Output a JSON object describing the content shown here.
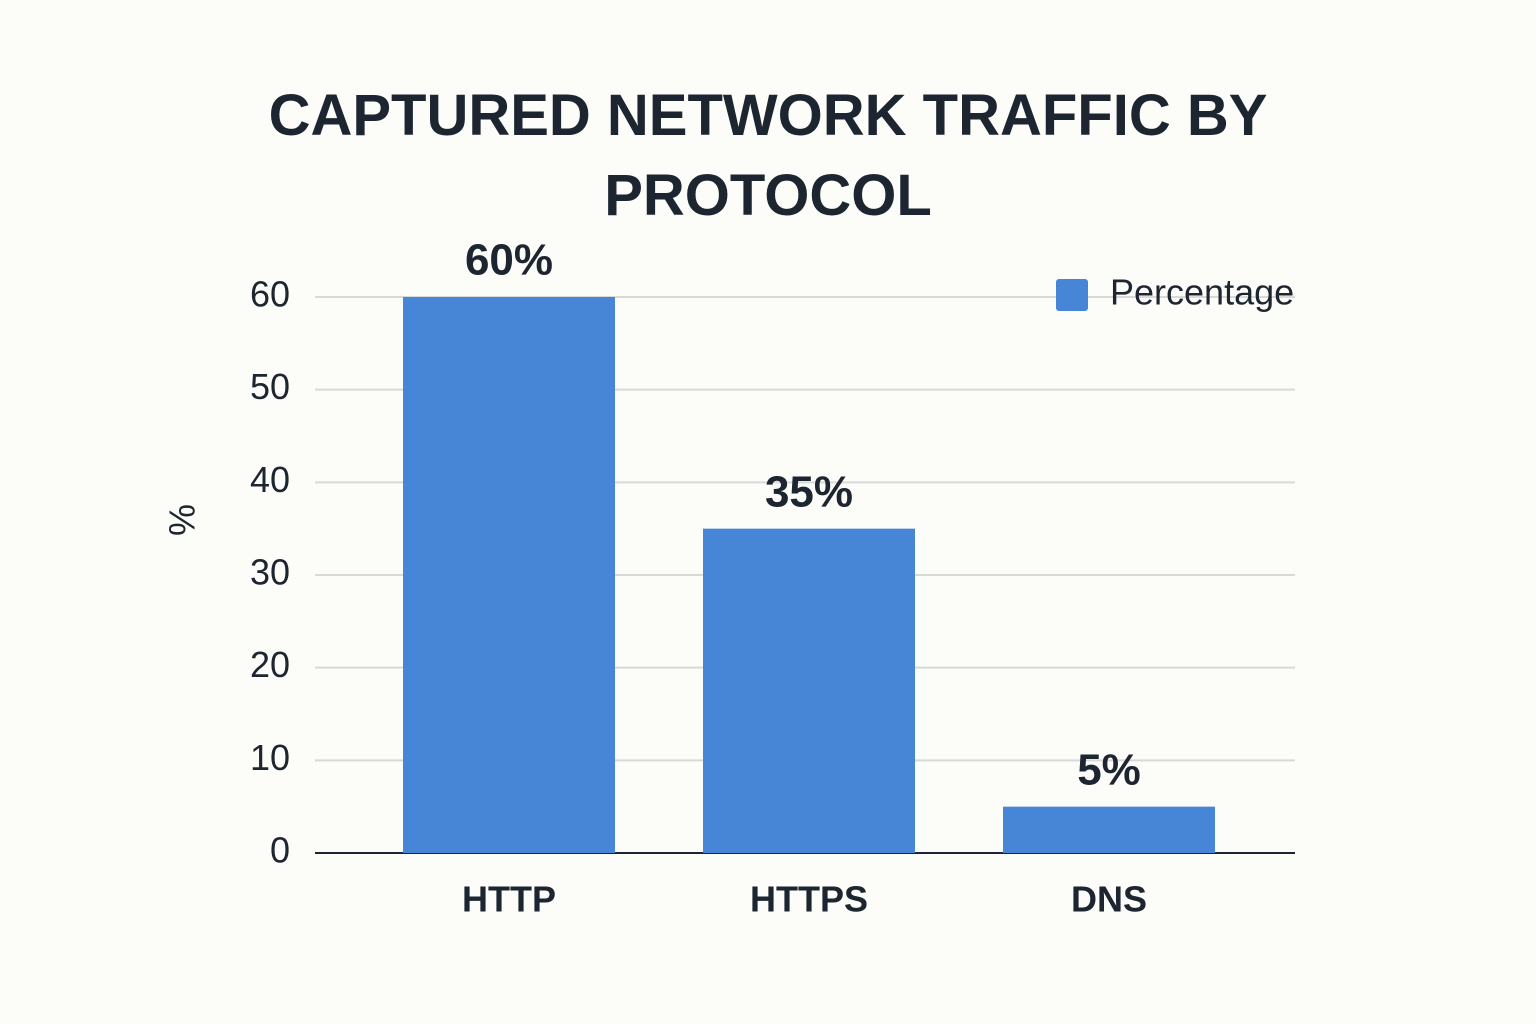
{
  "chart_data": {
    "type": "bar",
    "title": "CAPTURED NETWORK TRAFFIC BY PROTOCOL",
    "y_label": "%",
    "categories": [
      "HTTP",
      "HTTPS",
      "DNS"
    ],
    "series": [
      {
        "name": "Percentage",
        "color": "#4786d6",
        "values": [
          60,
          35,
          5
        ],
        "value_labels": [
          "60%",
          "35%",
          "5%"
        ]
      }
    ],
    "ylim": [
      0,
      60
    ],
    "yticks": [
      0,
      10,
      20,
      30,
      40,
      50,
      60
    ],
    "grid": true,
    "legend": "top-right"
  }
}
